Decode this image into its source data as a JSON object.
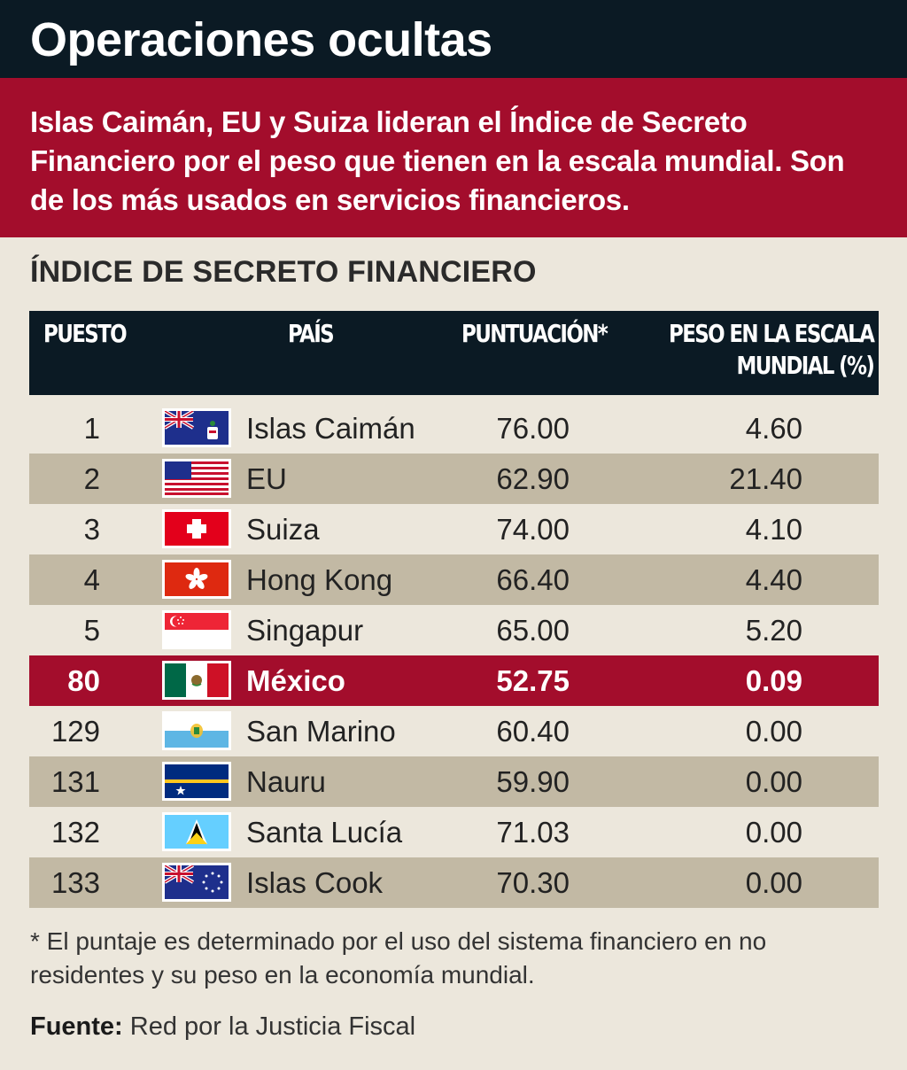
{
  "header": {
    "title": "Operaciones ocultas"
  },
  "subhead": {
    "text": "Islas Caimán, EU y Suiza lideran el Índice de Secreto Financiero por el peso que tienen en la escala mundial. Son de los más usados en servicios financieros."
  },
  "section_title": "ÍNDICE DE SECRETO FINANCIERO",
  "table": {
    "headers": {
      "puesto": "PUESTO",
      "pais": "PAÍS",
      "puntuacion": "PUNTUACIÓN*",
      "peso_line1": "PESO EN LA ESCALA",
      "peso_line2": "MUNDIAL (%)"
    }
  },
  "chart_data": {
    "type": "table",
    "title": "ÍNDICE DE SECRETO FINANCIERO",
    "columns": [
      "PUESTO",
      "PAÍS",
      "PUNTUACIÓN*",
      "PESO EN LA ESCALA MUNDIAL (%)"
    ],
    "rows": [
      {
        "rank": "1",
        "country": "Islas Caimán",
        "flag": "cayman-islands-flag-icon",
        "score": "76.00",
        "weight": "4.60",
        "highlight": false
      },
      {
        "rank": "2",
        "country": "EU",
        "flag": "usa-flag-icon",
        "score": "62.90",
        "weight": "21.40",
        "highlight": false
      },
      {
        "rank": "3",
        "country": "Suiza",
        "flag": "switzerland-flag-icon",
        "score": "74.00",
        "weight": "4.10",
        "highlight": false
      },
      {
        "rank": "4",
        "country": "Hong Kong",
        "flag": "hong-kong-flag-icon",
        "score": "66.40",
        "weight": "4.40",
        "highlight": false
      },
      {
        "rank": "5",
        "country": "Singapur",
        "flag": "singapore-flag-icon",
        "score": "65.00",
        "weight": "5.20",
        "highlight": false
      },
      {
        "rank": "80",
        "country": "México",
        "flag": "mexico-flag-icon",
        "score": "52.75",
        "weight": "0.09",
        "highlight": true
      },
      {
        "rank": "129",
        "country": "San Marino",
        "flag": "san-marino-flag-icon",
        "score": "60.40",
        "weight": "0.00",
        "highlight": false
      },
      {
        "rank": "131",
        "country": "Nauru",
        "flag": "nauru-flag-icon",
        "score": "59.90",
        "weight": "0.00",
        "highlight": false
      },
      {
        "rank": "132",
        "country": "Santa Lucía",
        "flag": "saint-lucia-flag-icon",
        "score": "71.03",
        "weight": "0.00",
        "highlight": false
      },
      {
        "rank": "133",
        "country": "Islas Cook",
        "flag": "cook-islands-flag-icon",
        "score": "70.30",
        "weight": "0.00",
        "highlight": false
      }
    ]
  },
  "colors": {
    "header_bg": "#0b1a24",
    "accent_red": "#a30d2c",
    "row_shade": "#c2b9a4",
    "page_bg": "#ece7dc"
  },
  "footnote": "* El puntaje es determinado por el uso del sistema financiero en no residentes y su peso en la economía mundial.",
  "source": {
    "label": "Fuente:",
    "text": " Red por la Justicia Fiscal"
  }
}
